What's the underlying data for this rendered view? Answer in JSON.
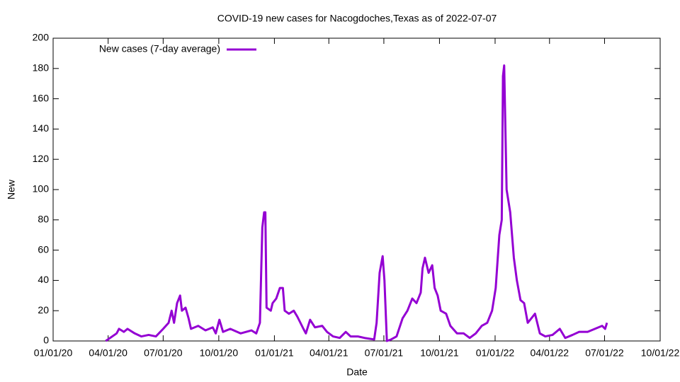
{
  "chart_data": {
    "type": "line",
    "title": "COVID-19 new cases for Nacogdoches,Texas as of 2022-07-07",
    "x_label": "Date",
    "y_label": "New",
    "legend": "top-left",
    "x": [
      "2020-03-28",
      "2020-04-15",
      "2020-04-19",
      "2020-04-27",
      "2020-05-03",
      "2020-05-15",
      "2020-05-26",
      "2020-06-07",
      "2020-06-19",
      "2020-07-01",
      "2020-07-10",
      "2020-07-15",
      "2020-07-19",
      "2020-07-24",
      "2020-07-29",
      "2020-08-01",
      "2020-08-07",
      "2020-08-12",
      "2020-08-16",
      "2020-08-28",
      "2020-09-09",
      "2020-09-21",
      "2020-09-26",
      "2020-10-02",
      "2020-10-08",
      "2020-10-20",
      "2020-11-06",
      "2020-11-24",
      "2020-12-02",
      "2020-12-08",
      "2020-12-12",
      "2020-12-15",
      "2020-12-17",
      "2020-12-19",
      "2020-12-26",
      "2020-12-29",
      "2021-01-04",
      "2021-01-10",
      "2021-01-15",
      "2021-01-18",
      "2021-01-25",
      "2021-02-02",
      "2021-02-08",
      "2021-02-18",
      "2021-02-22",
      "2021-03-01",
      "2021-03-09",
      "2021-03-21",
      "2021-03-29",
      "2021-04-08",
      "2021-04-19",
      "2021-04-29",
      "2021-05-07",
      "2021-05-19",
      "2021-05-30",
      "2021-06-15",
      "2021-06-19",
      "2021-06-24",
      "2021-06-29",
      "2021-07-02",
      "2021-07-06",
      "2021-07-13",
      "2021-07-22",
      "2021-08-01",
      "2021-08-09",
      "2021-08-17",
      "2021-08-24",
      "2021-08-31",
      "2021-09-03",
      "2021-09-07",
      "2021-09-13",
      "2021-09-19",
      "2021-09-23",
      "2021-09-28",
      "2021-10-03",
      "2021-10-12",
      "2021-10-19",
      "2021-10-30",
      "2021-11-10",
      "2021-11-20",
      "2021-11-30",
      "2021-12-10",
      "2021-12-19",
      "2021-12-27",
      "2022-01-02",
      "2022-01-08",
      "2022-01-12",
      "2022-01-14",
      "2022-01-16",
      "2022-01-20",
      "2022-01-26",
      "2022-02-01",
      "2022-02-06",
      "2022-02-12",
      "2022-02-18",
      "2022-02-24",
      "2022-03-02",
      "2022-03-08",
      "2022-03-16",
      "2022-03-25",
      "2022-04-06",
      "2022-04-18",
      "2022-04-27",
      "2022-05-09",
      "2022-05-20",
      "2022-06-03",
      "2022-06-15",
      "2022-06-27",
      "2022-07-02",
      "2022-07-05"
    ],
    "series": [
      {
        "name": "New cases (7-day average)",
        "color": "#9400d3",
        "values": [
          0,
          5,
          8,
          6,
          8,
          5,
          3,
          4,
          3,
          8,
          12,
          20,
          12,
          25,
          30,
          20,
          22,
          15,
          8,
          10,
          7,
          9,
          5,
          14,
          6,
          8,
          5,
          7,
          5,
          12,
          75,
          85,
          85,
          22,
          20,
          25,
          28,
          35,
          35,
          20,
          18,
          20,
          16,
          8,
          5,
          14,
          9,
          10,
          6,
          3,
          2,
          6,
          3,
          3,
          2,
          1,
          12,
          45,
          56,
          40,
          0,
          1,
          3,
          15,
          20,
          28,
          25,
          32,
          48,
          55,
          45,
          50,
          35,
          30,
          20,
          18,
          10,
          5,
          5,
          2,
          5,
          10,
          12,
          20,
          35,
          70,
          80,
          175,
          182,
          100,
          85,
          55,
          40,
          27,
          25,
          12,
          15,
          18,
          5,
          3,
          4,
          8,
          2,
          4,
          6,
          6,
          8,
          10,
          8,
          12
        ]
      }
    ],
    "xlim": [
      "2020-01-01",
      "2022-10-01"
    ],
    "xticks": [
      {
        "value": "2020-01-01",
        "label": "01/01/20"
      },
      {
        "value": "2020-04-01",
        "label": "04/01/20"
      },
      {
        "value": "2020-07-01",
        "label": "07/01/20"
      },
      {
        "value": "2020-10-01",
        "label": "10/01/20"
      },
      {
        "value": "2021-01-01",
        "label": "01/01/21"
      },
      {
        "value": "2021-04-01",
        "label": "04/01/21"
      },
      {
        "value": "2021-07-01",
        "label": "07/01/21"
      },
      {
        "value": "2021-10-01",
        "label": "10/01/21"
      },
      {
        "value": "2022-01-01",
        "label": "01/01/22"
      },
      {
        "value": "2022-04-01",
        "label": "04/01/22"
      },
      {
        "value": "2022-07-01",
        "label": "07/01/22"
      },
      {
        "value": "2022-10-01",
        "label": "10/01/22"
      }
    ],
    "ylim": [
      0,
      200
    ],
    "yticks": [
      0,
      20,
      40,
      60,
      80,
      100,
      120,
      140,
      160,
      180,
      200
    ]
  }
}
